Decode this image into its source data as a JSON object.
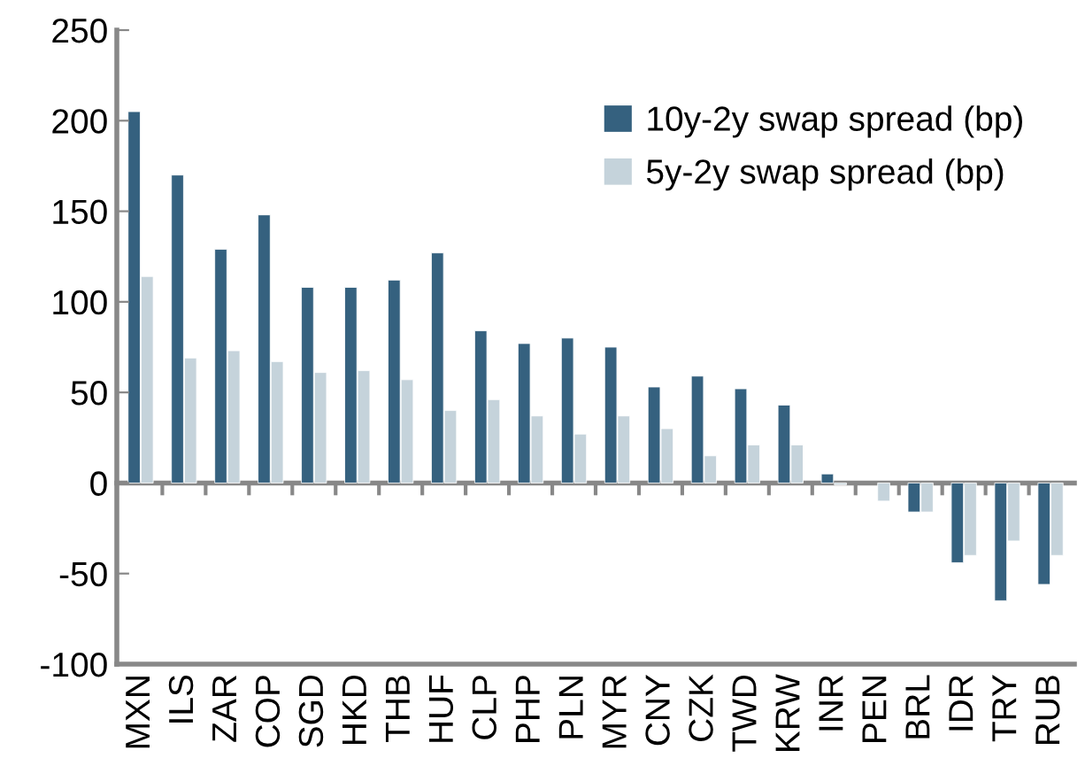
{
  "chart_data": {
    "type": "bar",
    "categories": [
      "MXN",
      "ILS",
      "ZAR",
      "COP",
      "SGD",
      "HKD",
      "THB",
      "HUF",
      "CLP",
      "PHP",
      "PLN",
      "MYR",
      "CNY",
      "CZK",
      "TWD",
      "KRW",
      "INR",
      "PEN",
      "BRL",
      "IDR",
      "TRY",
      "RUB"
    ],
    "series": [
      {
        "name": "10y-2y swap spread (bp)",
        "color": "#35617f",
        "values": [
          205,
          170,
          129,
          148,
          108,
          108,
          112,
          127,
          84,
          77,
          80,
          75,
          53,
          59,
          52,
          43,
          5,
          null,
          -16,
          -44,
          -65,
          -56
        ]
      },
      {
        "name": "5y-2y swap spread (bp)",
        "color": "#c5d3db",
        "values": [
          114,
          69,
          73,
          67,
          61,
          62,
          57,
          40,
          46,
          37,
          27,
          37,
          30,
          15,
          21,
          21,
          -1,
          -10,
          -16,
          -40,
          -32,
          -40
        ]
      }
    ],
    "ylim": [
      -100,
      250
    ],
    "yticks": [
      -100,
      -50,
      0,
      50,
      100,
      150,
      200,
      250
    ],
    "legend": "top right"
  }
}
